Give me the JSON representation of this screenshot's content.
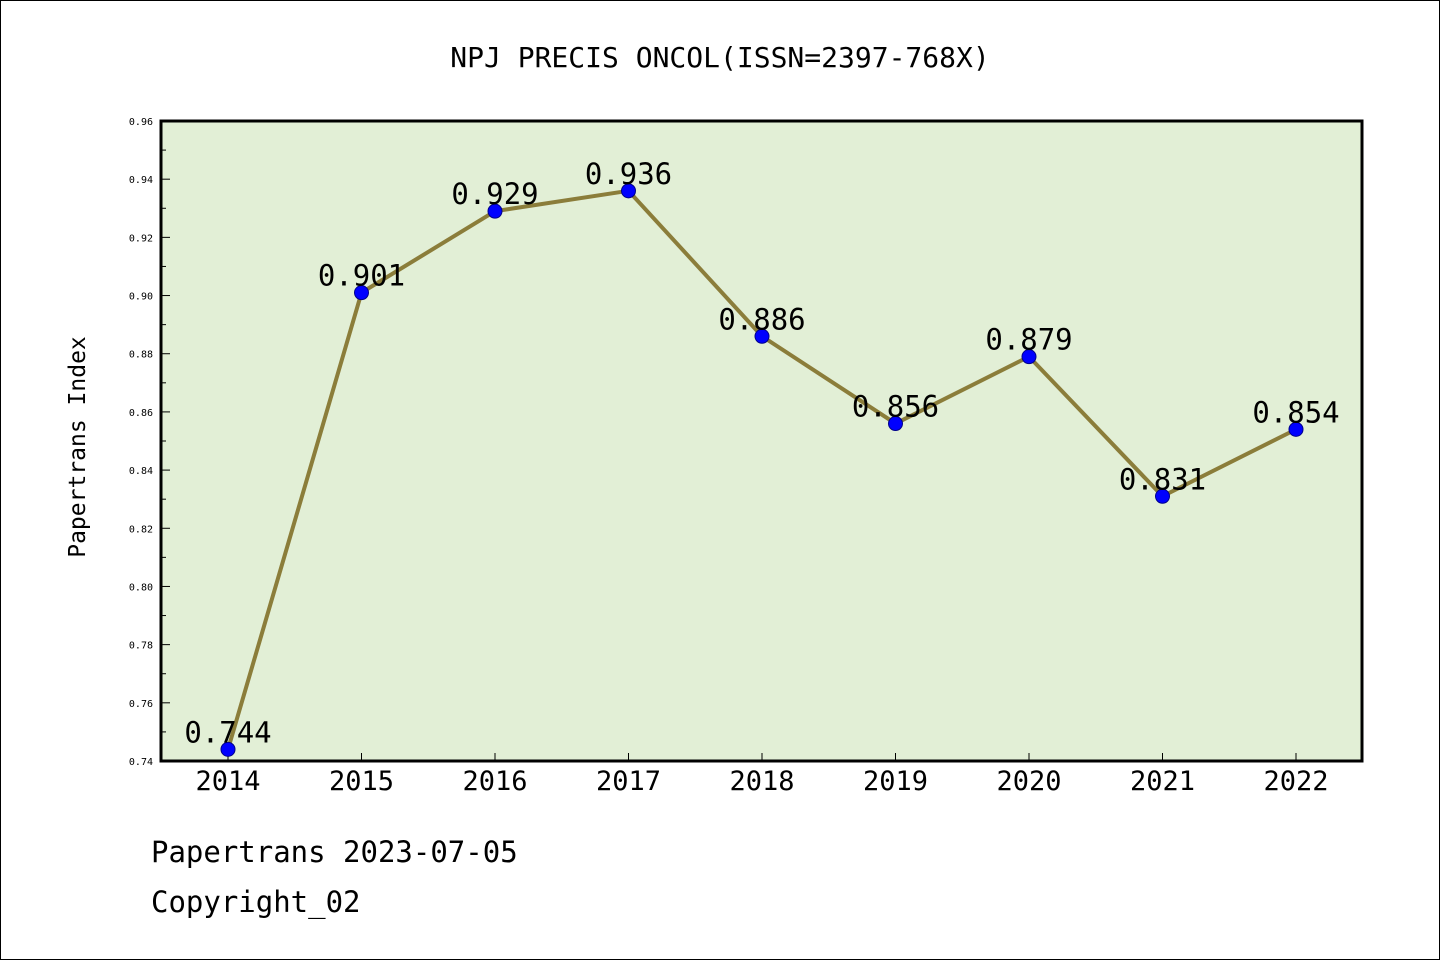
{
  "chart_data": {
    "type": "line",
    "title": "NPJ PRECIS ONCOL(ISSN=2397-768X)",
    "xlabel": "",
    "ylabel": "Papertrans Index",
    "categories": [
      "2014",
      "2015",
      "2016",
      "2017",
      "2018",
      "2019",
      "2020",
      "2021",
      "2022"
    ],
    "series": [
      {
        "values": [
          0.744,
          0.901,
          0.929,
          0.936,
          0.886,
          0.856,
          0.879,
          0.831,
          0.854
        ],
        "labels": [
          "0.744",
          "0.901",
          "0.929",
          "0.936",
          "0.886",
          "0.856",
          "0.879",
          "0.831",
          "0.854"
        ]
      }
    ],
    "ylim": [
      0.74,
      0.96
    ],
    "yticks": [
      "0.74",
      "0.76",
      "0.78",
      "0.80",
      "0.82",
      "0.84",
      "0.86",
      "0.88",
      "0.90",
      "0.92",
      "0.94",
      "0.96"
    ],
    "grid": false,
    "legend": "none",
    "colors": {
      "plot_background": "#e2efd6",
      "line": "#8b7d3a",
      "marker": "#0000ff",
      "marker_edge": "#00008b"
    }
  },
  "footer": {
    "line1": "Papertrans 2023-07-05",
    "line2": "Copyright_02"
  }
}
